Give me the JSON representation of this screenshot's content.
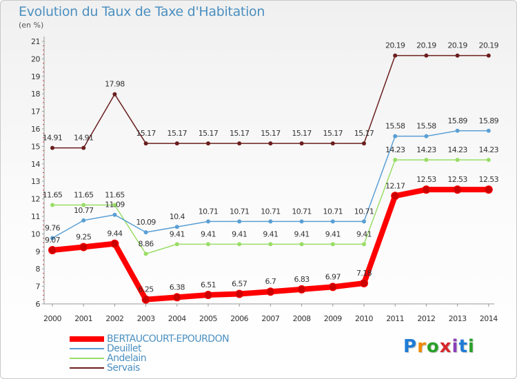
{
  "header": {
    "title": "Evolution du Taux de Taxe d'Habitation",
    "unit": "(en %)"
  },
  "logo": {
    "text": "Proxiti",
    "colors": [
      "#1f7bd6",
      "#f08a00",
      "#2aa02a",
      "#d6282b",
      "#8a3fb8",
      "#1f7bd6",
      "#2aa02a"
    ]
  },
  "chart_data": {
    "type": "line",
    "title": "Evolution du Taux de Taxe d'Habitation",
    "ylabel": "(en %)",
    "xlabel": "",
    "ylim": [
      6,
      21
    ],
    "yticks": [
      "6",
      "7",
      "8",
      "9",
      "10",
      "11",
      "12",
      "13",
      "14",
      "15",
      "16",
      "17",
      "18",
      "19",
      "20",
      "21"
    ],
    "categories": [
      "2000",
      "2001",
      "2002",
      "2003",
      "2004",
      "2005",
      "2006",
      "2007",
      "2008",
      "2009",
      "2010",
      "2011",
      "2012",
      "2013",
      "2014"
    ],
    "legend_position": "bottom-left",
    "series": [
      {
        "name": "BERTAUCOURT-EPOURDON",
        "color": "#ff0000",
        "values": [
          9.07,
          9.25,
          9.44,
          6.25,
          6.38,
          6.51,
          6.57,
          6.7,
          6.83,
          6.97,
          7.18,
          12.17,
          12.53,
          12.53,
          12.53
        ],
        "labels": [
          "9.07",
          "9.25",
          "9.44",
          "6.25",
          "6.38",
          "6.51",
          "6.57",
          "6.7",
          "6.83",
          "6.97",
          "7.18",
          "12.17",
          "12.53",
          "12.53",
          "12.53"
        ]
      },
      {
        "name": "Deuillet",
        "color": "#5a9fd4",
        "values": [
          9.76,
          10.77,
          11.09,
          10.09,
          10.4,
          10.71,
          10.71,
          10.71,
          10.71,
          10.71,
          10.71,
          15.58,
          15.58,
          15.89,
          15.89
        ],
        "labels": [
          "9.76",
          "10.77",
          "11.09",
          "10.09",
          "10.4",
          "10.71",
          "10.71",
          "10.71",
          "10.71",
          "10.71",
          "10.71",
          "15.58",
          "15.58",
          "15.89",
          "15.89"
        ]
      },
      {
        "name": "Andelain",
        "color": "#99dd66",
        "values": [
          11.65,
          11.65,
          11.65,
          8.86,
          9.41,
          9.41,
          9.41,
          9.41,
          9.41,
          9.41,
          9.41,
          14.23,
          14.23,
          14.23,
          14.23
        ],
        "labels": [
          "11.65",
          "11.65",
          "11.65",
          "8.86",
          "9.41",
          "9.41",
          "9.41",
          "9.41",
          "9.41",
          "9.41",
          "9.41",
          "14.23",
          "14.23",
          "14.23",
          "14.23"
        ]
      },
      {
        "name": "Servais",
        "color": "#6b1e1e",
        "values": [
          14.91,
          14.91,
          17.98,
          15.17,
          15.17,
          15.17,
          15.17,
          15.17,
          15.17,
          15.17,
          15.17,
          20.19,
          20.19,
          20.19,
          20.19
        ],
        "labels": [
          "14.91",
          "14.91",
          "17.98",
          "15.17",
          "15.17",
          "15.17",
          "15.17",
          "15.17",
          "15.17",
          "15.17",
          "15.17",
          "20.19",
          "20.19",
          "20.19",
          "20.19"
        ]
      }
    ]
  }
}
